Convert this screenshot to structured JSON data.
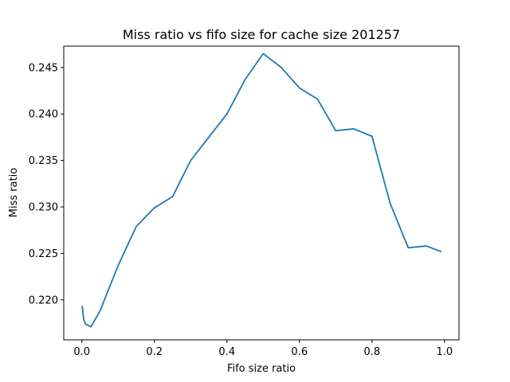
{
  "chart_data": {
    "type": "line",
    "title": "Miss ratio vs fifo size for cache size 201257",
    "xlabel": "Fifo size ratio",
    "ylabel": "Miss ratio",
    "xlim": [
      -0.05,
      1.04
    ],
    "ylim": [
      0.2157,
      0.2473
    ],
    "xticks": [
      0.0,
      0.2,
      0.4,
      0.6,
      0.8,
      1.0
    ],
    "xtick_labels": [
      "0.0",
      "0.2",
      "0.4",
      "0.6",
      "0.8",
      "1.0"
    ],
    "yticks": [
      0.22,
      0.225,
      0.23,
      0.235,
      0.24,
      0.245
    ],
    "ytick_labels": [
      "0.220",
      "0.225",
      "0.230",
      "0.235",
      "0.240",
      "0.245"
    ],
    "grid": false,
    "series": [
      {
        "color": "#1f77b4",
        "x": [
          0.001,
          0.005,
          0.01,
          0.025,
          0.05,
          0.1,
          0.15,
          0.2,
          0.25,
          0.3,
          0.35,
          0.4,
          0.45,
          0.5,
          0.55,
          0.6,
          0.65,
          0.7,
          0.75,
          0.8,
          0.85,
          0.9,
          0.95,
          0.99
        ],
        "y": [
          0.2193,
          0.2179,
          0.2174,
          0.2171,
          0.2188,
          0.2237,
          0.2279,
          0.2299,
          0.2311,
          0.235,
          0.2375,
          0.24,
          0.2437,
          0.2465,
          0.245,
          0.2428,
          0.2416,
          0.2382,
          0.2384,
          0.2376,
          0.2304,
          0.2256,
          0.2258,
          0.2252
        ]
      }
    ]
  }
}
